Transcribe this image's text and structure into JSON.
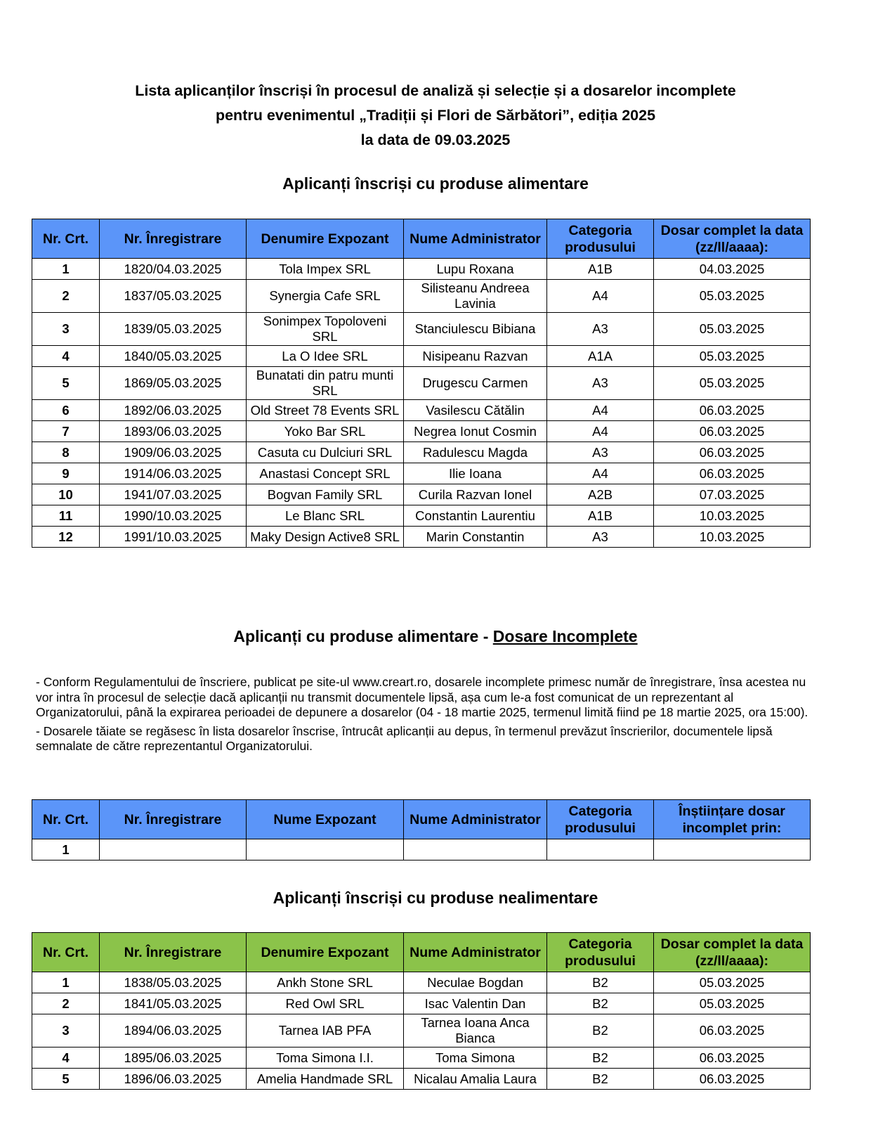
{
  "title": {
    "line1": "Lista aplicanților înscriși în procesul de analiză și selecție și a dosarelor incomplete",
    "line2": "pentru evenimentul „Tradiții și Flori de Sărbători”, ediția 2025",
    "line3": "la data de 09.03.2025"
  },
  "colors": {
    "food_header": "#5b95f9",
    "nonfood_header": "#8bc34a"
  },
  "food": {
    "heading": "Aplicanți înscriși cu produse alimentare",
    "headers": [
      "Nr. Crt.",
      "Nr. Înregistrare",
      "Denumire Expozant",
      "Nume Administrator",
      "Categoria produsului",
      "Dosar complet la data (zz/ll/aaaa):"
    ],
    "rows": [
      [
        "1",
        "1820/04.03.2025",
        "Tola Impex SRL",
        "Lupu Roxana",
        "A1B",
        "04.03.2025"
      ],
      [
        "2",
        "1837/05.03.2025",
        "Synergia Cafe SRL",
        "Silisteanu Andreea Lavinia",
        "A4",
        "05.03.2025"
      ],
      [
        "3",
        "1839/05.03.2025",
        "Sonimpex Topoloveni SRL",
        "Stanciulescu Bibiana",
        "A3",
        "05.03.2025"
      ],
      [
        "4",
        "1840/05.03.2025",
        "La O Idee SRL",
        "Nisipeanu Razvan",
        "A1A",
        "05.03.2025"
      ],
      [
        "5",
        "1869/05.03.2025",
        "Bunatati din patru munti SRL",
        "Drugescu Carmen",
        "A3",
        "05.03.2025"
      ],
      [
        "6",
        "1892/06.03.2025",
        "Old Street 78 Events SRL",
        "Vasilescu Cătălin",
        "A4",
        "06.03.2025"
      ],
      [
        "7",
        "1893/06.03.2025",
        "Yoko Bar SRL",
        "Negrea Ionut Cosmin",
        "A4",
        "06.03.2025"
      ],
      [
        "8",
        "1909/06.03.2025",
        "Casuta cu Dulciuri SRL",
        "Radulescu Magda",
        "A3",
        "06.03.2025"
      ],
      [
        "9",
        "1914/06.03.2025",
        "Anastasi Concept SRL",
        "Ilie Ioana",
        "A4",
        "06.03.2025"
      ],
      [
        "10",
        "1941/07.03.2025",
        "Bogvan Family SRL",
        "Curila Razvan Ionel",
        "A2B",
        "07.03.2025"
      ],
      [
        "11",
        "1990/10.03.2025",
        "Le Blanc SRL",
        "Constantin Laurentiu",
        "A1B",
        "10.03.2025"
      ],
      [
        "12",
        "1991/10.03.2025",
        "Maky Design Active8 SRL",
        "Marin Constantin",
        "A3",
        "10.03.2025"
      ]
    ]
  },
  "incomplete": {
    "heading_prefix": "Aplicanți cu produse alimentare - ",
    "heading_underlined": "Dosare Incomplete",
    "paragraphs": [
      "- Conform Regulamentului de înscriere, publicat pe site-ul www.creart.ro, dosarele incomplete primesc număr de înregistrare, însa acestea nu vor intra în procesul de selecție dacă aplicanții nu transmit documentele lipsă, așa cum le-a fost comunicat de un reprezentant al Organizatorului, până la expirarea perioadei de depunere a dosarelor (04 - 18 martie 2025, termenul limită fiind pe 18 martie 2025, ora 15:00).",
      "- Dosarele tăiate se regăsesc în lista dosarelor înscrise, întrucât aplicanții au depus, în termenul prevăzut înscrierilor, documentele lipsă semnalate de către reprezentantul Organizatorului."
    ],
    "headers": [
      "Nr. Crt.",
      "Nr. Înregistrare",
      "Nume Expozant",
      "Nume Administrator",
      "Categoria produsului",
      "Înștiințare dosar incomplet prin:"
    ],
    "rows": [
      [
        "1",
        "",
        "",
        "",
        "",
        ""
      ]
    ]
  },
  "nonfood": {
    "heading": "Aplicanți înscriși cu produse nealimentare",
    "headers": [
      "Nr. Crt.",
      "Nr. Înregistrare",
      "Denumire Expozant",
      "Nume Administrator",
      "Categoria produsului",
      "Dosar complet la data (zz/ll/aaaa):"
    ],
    "rows": [
      [
        "1",
        "1838/05.03.2025",
        "Ankh Stone SRL",
        "Neculae Bogdan",
        "B2",
        "05.03.2025"
      ],
      [
        "2",
        "1841/05.03.2025",
        "Red Owl SRL",
        "Isac Valentin Dan",
        "B2",
        "05.03.2025"
      ],
      [
        "3",
        "1894/06.03.2025",
        "Tarnea IAB PFA",
        "Tarnea Ioana Anca Bianca",
        "B2",
        "06.03.2025"
      ],
      [
        "4",
        "1895/06.03.2025",
        "Toma Simona I.I.",
        "Toma Simona",
        "B2",
        "06.03.2025"
      ],
      [
        "5",
        "1896/06.03.2025",
        "Amelia Handmade SRL",
        "Nicalau Amalia Laura",
        "B2",
        "06.03.2025"
      ]
    ]
  }
}
